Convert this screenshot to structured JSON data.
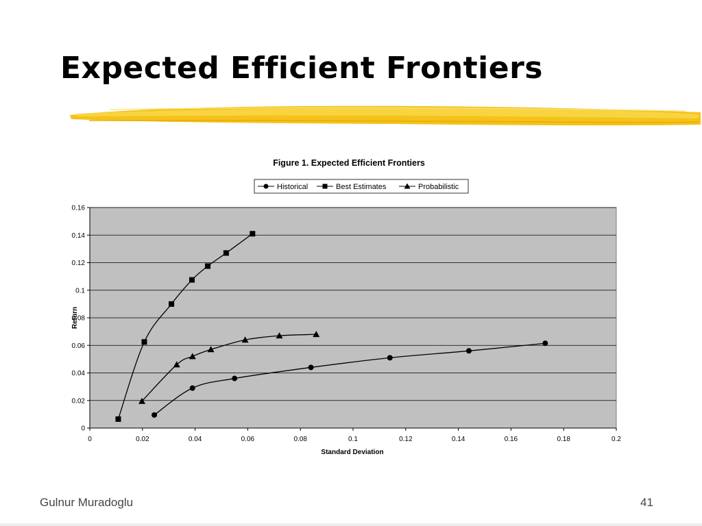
{
  "slide": {
    "title": "Expected Efficient Frontiers",
    "footer_left": "Gulnur Muradoglu",
    "page_number": "41"
  },
  "chart_data": {
    "type": "line",
    "title": "Figure 1. Expected Efficient Frontiers",
    "xlabel": "Standard Deviation",
    "ylabel": "Return",
    "xlim": [
      0,
      0.2
    ],
    "ylim": [
      0,
      0.16
    ],
    "x_ticks": [
      "0",
      "0.02",
      "0.04",
      "0.06",
      "0.08",
      "0.1",
      "0.12",
      "0.14",
      "0.16",
      "0.18",
      "0.2"
    ],
    "y_ticks": [
      "0",
      "0.02",
      "0.04",
      "0.06",
      "0.08",
      "0.1",
      "0.12",
      "0.14",
      "0.16"
    ],
    "grid": true,
    "legend_position": "top",
    "plot_background": "#c0c0c0",
    "series": [
      {
        "name": "Historical",
        "marker": "circle",
        "points": [
          [
            0.0245,
            0.0095
          ],
          [
            0.039,
            0.029
          ],
          [
            0.055,
            0.036
          ],
          [
            0.084,
            0.044
          ],
          [
            0.114,
            0.051
          ],
          [
            0.144,
            0.056
          ],
          [
            0.173,
            0.0615
          ]
        ]
      },
      {
        "name": "Best Estimates",
        "marker": "square",
        "points": [
          [
            0.0108,
            0.0065
          ],
          [
            0.0207,
            0.0625
          ],
          [
            0.031,
            0.09
          ],
          [
            0.0388,
            0.1075
          ],
          [
            0.0448,
            0.1175
          ],
          [
            0.0518,
            0.127
          ],
          [
            0.0618,
            0.141
          ]
        ]
      },
      {
        "name": "Probabilistic",
        "marker": "triangle",
        "points": [
          [
            0.0198,
            0.0195
          ],
          [
            0.033,
            0.046
          ],
          [
            0.039,
            0.052
          ],
          [
            0.046,
            0.057
          ],
          [
            0.059,
            0.064
          ],
          [
            0.072,
            0.067
          ],
          [
            0.086,
            0.068
          ]
        ]
      }
    ]
  }
}
